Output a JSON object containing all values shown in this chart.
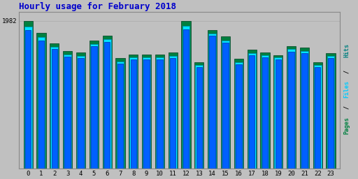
{
  "title": "Hourly usage for February 2018",
  "hours": [
    0,
    1,
    2,
    3,
    4,
    5,
    6,
    7,
    8,
    9,
    10,
    11,
    12,
    13,
    14,
    15,
    16,
    17,
    18,
    19,
    20,
    21,
    22,
    23
  ],
  "pages": [
    1982,
    1820,
    1680,
    1580,
    1560,
    1720,
    1780,
    1480,
    1530,
    1530,
    1530,
    1560,
    1980,
    1430,
    1860,
    1770,
    1470,
    1590,
    1560,
    1520,
    1640,
    1620,
    1430,
    1550
  ],
  "files": [
    1900,
    1760,
    1630,
    1530,
    1510,
    1670,
    1730,
    1440,
    1490,
    1490,
    1490,
    1510,
    1910,
    1390,
    1810,
    1720,
    1430,
    1550,
    1520,
    1490,
    1600,
    1580,
    1390,
    1510
  ],
  "hits": [
    1860,
    1720,
    1600,
    1500,
    1480,
    1640,
    1700,
    1410,
    1460,
    1460,
    1460,
    1480,
    1870,
    1360,
    1780,
    1690,
    1400,
    1520,
    1490,
    1460,
    1570,
    1550,
    1360,
    1480
  ],
  "pages_color": "#008040",
  "files_color": "#00e5ff",
  "hits_color": "#0060ff",
  "pages_edge": "#004020",
  "files_edge": "#0080aa",
  "hits_edge": "#0030aa",
  "bg_color": "#c0c0c0",
  "plot_bg_color": "#c0c0c0",
  "title_color": "#0000cc",
  "right_label_pages_color": "#008040",
  "right_label_files_color": "#00ccff",
  "right_label_hits_color": "#008080",
  "bar_width": 0.7,
  "ylim_min": 0,
  "ylim_max": 2100,
  "title_fontsize": 9,
  "tick_fontsize": 6.5,
  "ytick_label": "1982",
  "ytick_val": 1982
}
